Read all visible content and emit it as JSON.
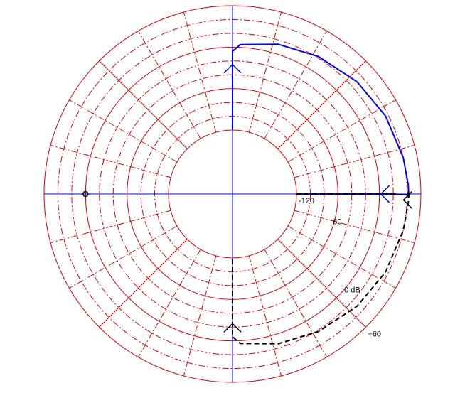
{
  "chart_data": {
    "type": "line",
    "title": "",
    "subtitle": "",
    "description_type": "polar-log-nyquist",
    "db_rings": [
      -120,
      -60,
      0,
      60
    ],
    "db_range": [
      -120,
      60
    ],
    "inner_ring_db": -120,
    "dashed_rings_db": [
      -100,
      -80,
      -40,
      -20,
      20,
      40
    ],
    "spoke_angles_deg": [
      0,
      45,
      90,
      135,
      180,
      225,
      270,
      315
    ],
    "dashed_spoke_angles_deg": [
      15,
      30,
      60,
      75,
      105,
      120,
      150,
      165,
      195,
      210,
      240,
      255,
      285,
      300,
      330,
      345
    ],
    "tick_labels": [
      {
        "text": "-120",
        "db": -120,
        "angle_deg": 0,
        "position": "below-right"
      },
      {
        "text": "-60",
        "db": -60,
        "angle_deg": -11,
        "position": "below"
      },
      {
        "text": "0 dB",
        "db": 0,
        "angle_deg": -37,
        "position": "below"
      },
      {
        "text": "+60",
        "db": 60,
        "angle_deg": -45,
        "position": "below-right"
      }
    ],
    "critical_point": {
      "db": 0,
      "angle_deg": 180,
      "label": ""
    },
    "series": [
      {
        "color": "#0000ff",
        "style": "solid",
        "points": [
          {
            "db": -120,
            "angle_deg": 90
          },
          {
            "db": -6,
            "angle_deg": 90
          },
          {
            "db": 4,
            "angle_deg": 87
          },
          {
            "db": 14,
            "angle_deg": 73
          },
          {
            "db": 22,
            "angle_deg": 58
          },
          {
            "db": 30,
            "angle_deg": 42
          },
          {
            "db": 36,
            "angle_deg": 27
          },
          {
            "db": 40,
            "angle_deg": 12
          },
          {
            "db": 42,
            "angle_deg": 3
          },
          {
            "db": 42.5,
            "angle_deg": -1
          },
          {
            "db": 40,
            "angle_deg": -0.3
          },
          {
            "db": 20,
            "angle_deg": 0
          },
          {
            "db": -60,
            "angle_deg": 0
          },
          {
            "db": -120,
            "angle_deg": 0
          }
        ],
        "arrows": [
          {
            "db": -25,
            "angle_deg": 90,
            "direction": "up"
          },
          {
            "db": 2,
            "angle_deg": 0,
            "direction": "left"
          }
        ]
      },
      {
        "color": "#000000",
        "style": "dashed",
        "points": [
          {
            "db": -120,
            "angle_deg": 0
          },
          {
            "db": 20,
            "angle_deg": 0
          },
          {
            "db": 40,
            "angle_deg": -0.3
          },
          {
            "db": 42.5,
            "angle_deg": 1
          },
          {
            "db": 42,
            "angle_deg": -3
          },
          {
            "db": 40,
            "angle_deg": -12
          },
          {
            "db": 36,
            "angle_deg": -27
          },
          {
            "db": 30,
            "angle_deg": -42
          },
          {
            "db": 22,
            "angle_deg": -58
          },
          {
            "db": 14,
            "angle_deg": -73
          },
          {
            "db": 4,
            "angle_deg": -87
          },
          {
            "db": -6,
            "angle_deg": -90
          },
          {
            "db": -120,
            "angle_deg": -90
          }
        ],
        "arrows": [
          {
            "db": -25,
            "angle_deg": -90,
            "direction": "up"
          },
          {
            "db": 35,
            "angle_deg": -2,
            "direction": "left"
          }
        ]
      }
    ],
    "colors": {
      "grid": "#e00000",
      "axes": "#0000ff",
      "positive_branch": "#0000ff",
      "negative_branch": "#000000",
      "background": "#ffffff"
    },
    "grid": true,
    "legend": "none"
  }
}
